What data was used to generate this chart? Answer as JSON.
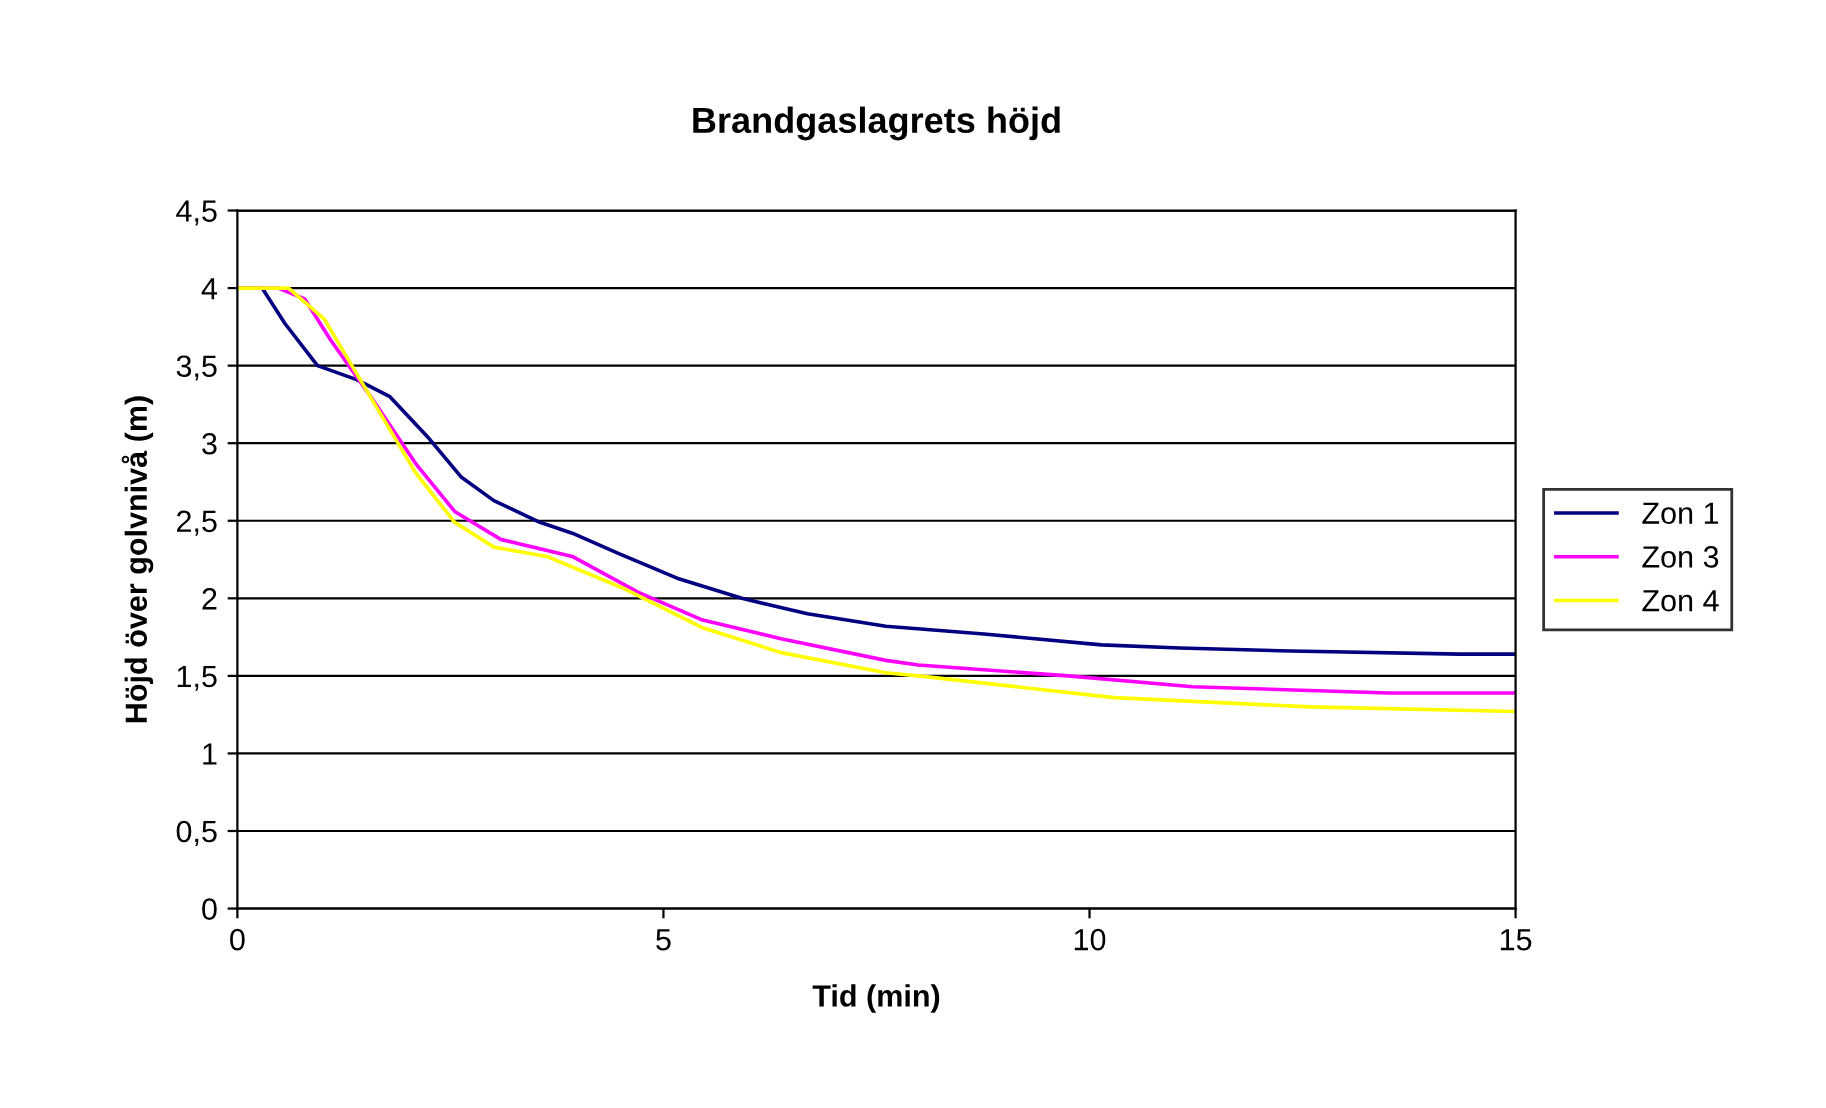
{
  "chart_data": {
    "type": "line",
    "title": "Brandgaslagrets höjd",
    "xlabel": "Tid (min)",
    "ylabel": "Höjd över golvnivå (m)",
    "xlim": [
      0,
      15
    ],
    "xticks": [
      0,
      5,
      10,
      15
    ],
    "ylim": [
      0,
      4.5
    ],
    "yticks": [
      0,
      {
        "value": 0.5,
        "label": "0,5"
      },
      1,
      {
        "value": 1.5,
        "label": "1,5"
      },
      2,
      {
        "value": 2.5,
        "label": "2,5"
      },
      3,
      {
        "value": 3.5,
        "label": "3,5"
      },
      4,
      {
        "value": 4.5,
        "label": "4,5"
      }
    ],
    "grid": "y",
    "legend": "right",
    "marker": "none",
    "line_style": "solid",
    "series": [
      {
        "name": "Zon 1",
        "color": "#000080",
        "x": [
          0,
          0.29,
          0.56,
          0.94,
          1.4,
          1.79,
          2.25,
          2.63,
          3.01,
          3.55,
          3.93,
          4.47,
          5.16,
          5.92,
          6.69,
          7.61,
          8.76,
          10.14,
          11.06,
          12.36,
          14.35,
          15
        ],
        "values": [
          4,
          4,
          3.77,
          3.5,
          3.41,
          3.3,
          3.03,
          2.78,
          2.63,
          2.49,
          2.42,
          2.29,
          2.13,
          2.0,
          1.9,
          1.82,
          1.77,
          1.7,
          1.68,
          1.66,
          1.64,
          1.64
        ]
      },
      {
        "name": "Zon 3",
        "color": "#ff00ff",
        "x": [
          0,
          0.48,
          0.79,
          1.1,
          1.59,
          2.09,
          2.55,
          3.09,
          3.93,
          4.7,
          5.46,
          6.38,
          7.61,
          7.99,
          9.75,
          11.21,
          13.51,
          15
        ],
        "values": [
          4,
          4,
          3.93,
          3.66,
          3.28,
          2.87,
          2.56,
          2.38,
          2.27,
          2.04,
          1.86,
          1.74,
          1.6,
          1.57,
          1.5,
          1.43,
          1.39,
          1.39
        ]
      },
      {
        "name": "Zon 4",
        "color": "#ffff00",
        "x": [
          0,
          0.6,
          1.02,
          1.56,
          2.09,
          2.55,
          3.01,
          3.63,
          4.55,
          5.46,
          6.38,
          7.61,
          7.99,
          10.29,
          12.59,
          15
        ],
        "values": [
          4,
          4,
          3.8,
          3.3,
          2.81,
          2.49,
          2.33,
          2.27,
          2.06,
          1.81,
          1.65,
          1.52,
          1.5,
          1.36,
          1.3,
          1.27
        ]
      }
    ]
  }
}
